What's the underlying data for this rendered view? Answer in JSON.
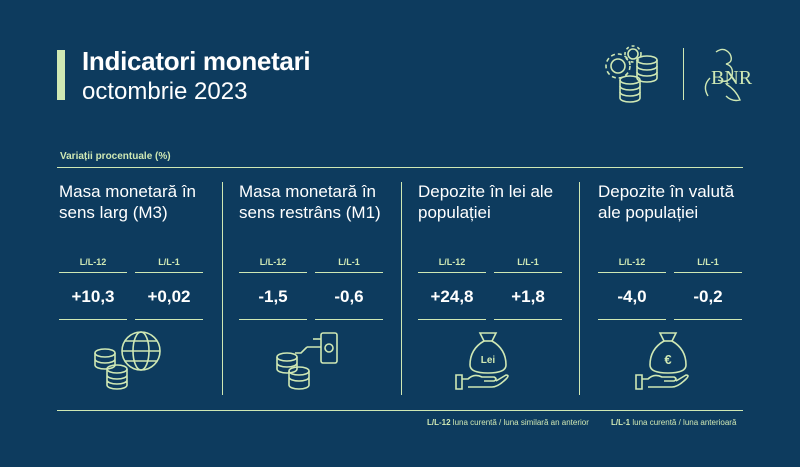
{
  "header": {
    "title": "Indicatori monetari",
    "subtitle": "octombrie 2023"
  },
  "section_label": "Variații procentuale (%)",
  "columns": [
    {
      "title": "Masa monetară în sens larg (M3)",
      "metrics": [
        {
          "label": "L/L-12",
          "value": "+10,3"
        },
        {
          "label": "L/L-1",
          "value": "+0,02"
        }
      ],
      "icon": "globe-coins-icon"
    },
    {
      "title": "Masa monetară în sens restrâns (M1)",
      "metrics": [
        {
          "label": "L/L-12",
          "value": "-1,5"
        },
        {
          "label": "L/L-1",
          "value": "-0,6"
        }
      ],
      "icon": "coins-cash-hand-icon"
    },
    {
      "title": "Depozite în lei ale populației",
      "metrics": [
        {
          "label": "L/L-12",
          "value": "+24,8"
        },
        {
          "label": "L/L-1",
          "value": "+1,8"
        }
      ],
      "icon": "lei-bag-hand-icon",
      "icon_text": "Lei"
    },
    {
      "title": "Depozite în valută ale populației",
      "metrics": [
        {
          "label": "L/L-12",
          "value": "-4,0"
        },
        {
          "label": "L/L-1",
          "value": "-0,2"
        }
      ],
      "icon": "euro-bag-hand-icon",
      "icon_text": "€"
    }
  ],
  "footer": {
    "note1_key": "L/L-12",
    "note1_text": "luna curentă / luna similară an anterior",
    "note2_key": "L/L-1",
    "note2_text": "luna curentă / luna anterioară"
  },
  "logo": {
    "monogram_text": "BNR"
  },
  "colors": {
    "background": "#0d3b5e",
    "accent": "#cfe8b4",
    "text": "#ffffff"
  }
}
